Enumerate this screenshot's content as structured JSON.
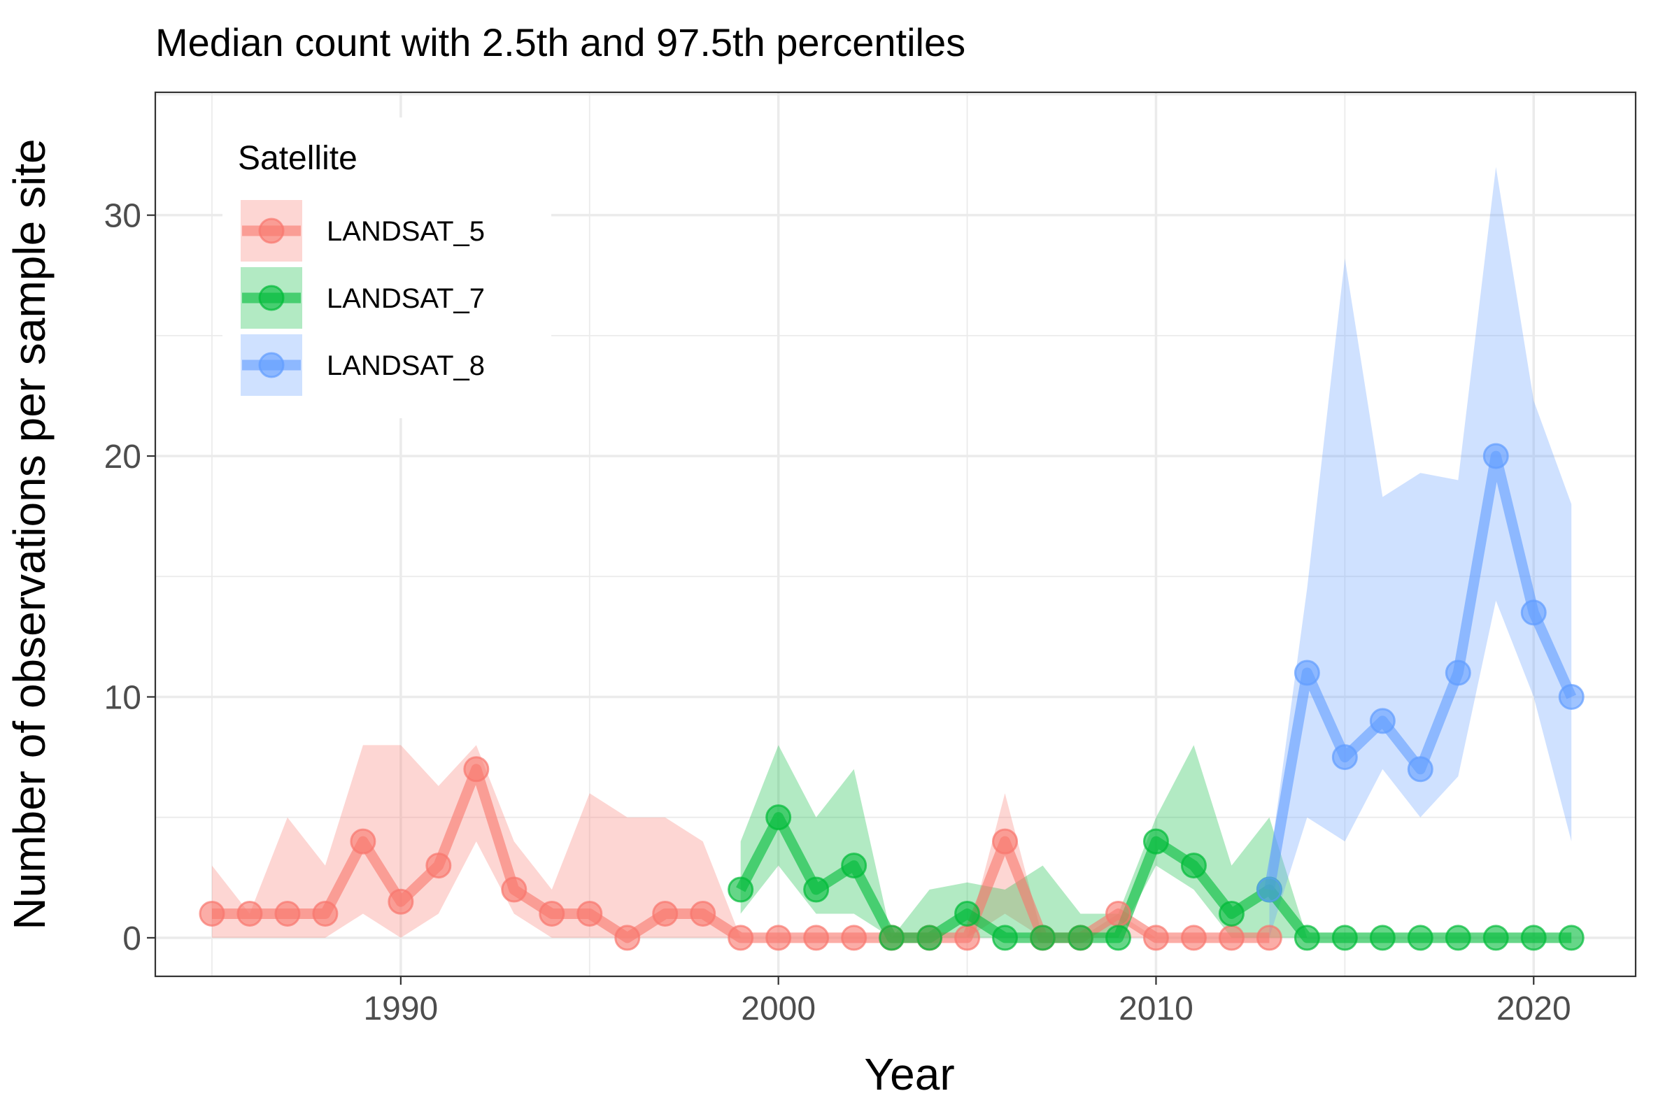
{
  "chart_data": {
    "type": "line",
    "title": "Median count with 2.5th and 97.5th percentiles",
    "xlabel": "Year",
    "ylabel": "Number of observations per sample site",
    "xlim": [
      1983.5,
      2022.7
    ],
    "ylim": [
      -1.6,
      35.1
    ],
    "x_ticks": [
      1990,
      2000,
      2010,
      2020
    ],
    "y_ticks": [
      0,
      10,
      20,
      30
    ],
    "x_minor": [
      1985,
      1995,
      2005,
      2015
    ],
    "y_minor": [
      5,
      15,
      25,
      35
    ],
    "grid": true,
    "legend": {
      "title": "Satellite",
      "position": "top-left"
    },
    "series": [
      {
        "name": "LANDSAT_5",
        "color": "#F8766D",
        "x": [
          1985,
          1986,
          1987,
          1988,
          1989,
          1990,
          1991,
          1992,
          1993,
          1994,
          1995,
          1996,
          1997,
          1998,
          1999,
          2000,
          2001,
          2002,
          2003,
          2004,
          2005,
          2006,
          2007,
          2008,
          2009,
          2010,
          2011,
          2012,
          2013
        ],
        "median": [
          1,
          1,
          1,
          1,
          4,
          1.5,
          3,
          7,
          2,
          1,
          1,
          0,
          1,
          1,
          0,
          0,
          0,
          0,
          0,
          0,
          0,
          4,
          0,
          0,
          1,
          0,
          0,
          0,
          0
        ],
        "lower": [
          0,
          0,
          0,
          0,
          1,
          0,
          1,
          4,
          1,
          0,
          0,
          0,
          0,
          0,
          0,
          0,
          0,
          0,
          0,
          0,
          0,
          1,
          0,
          0,
          0,
          0,
          0,
          0,
          0
        ],
        "upper": [
          3,
          1,
          5,
          3,
          8,
          8,
          6.3,
          8,
          4,
          2,
          6,
          5,
          5,
          4,
          0,
          0,
          0,
          0,
          0,
          0,
          0,
          6,
          0,
          0,
          1,
          0,
          0,
          0,
          0
        ]
      },
      {
        "name": "LANDSAT_7",
        "color": "#00BA38",
        "x": [
          1999,
          2000,
          2001,
          2002,
          2003,
          2004,
          2005,
          2006,
          2007,
          2008,
          2009,
          2010,
          2011,
          2012,
          2013,
          2014,
          2015,
          2016,
          2017,
          2018,
          2019,
          2020,
          2021
        ],
        "median": [
          2,
          5,
          2,
          3,
          0,
          0,
          1,
          0,
          0,
          0,
          0,
          4,
          3,
          1,
          2,
          0,
          0,
          0,
          0,
          0,
          0,
          0,
          0
        ],
        "lower": [
          1,
          3,
          1,
          1,
          0,
          0,
          0,
          0,
          0,
          0,
          0,
          3,
          2,
          0,
          0,
          0,
          0,
          0,
          0,
          0,
          0,
          0,
          0
        ],
        "upper": [
          4,
          8,
          5,
          7,
          0,
          2,
          2.3,
          2,
          3,
          1,
          1,
          5,
          8,
          3,
          5,
          0,
          0,
          0,
          0,
          0,
          0,
          0,
          0
        ]
      },
      {
        "name": "LANDSAT_8",
        "color": "#619CFF",
        "x": [
          2013,
          2014,
          2015,
          2016,
          2017,
          2018,
          2019,
          2020,
          2021
        ],
        "median": [
          2,
          11,
          7.5,
          9,
          7,
          11,
          20,
          13.5,
          10
        ],
        "lower": [
          0,
          5,
          4,
          7,
          5,
          6.7,
          14,
          10,
          4
        ],
        "upper": [
          3,
          14.5,
          28.2,
          18.3,
          19.3,
          19,
          32,
          22.3,
          18
        ]
      }
    ]
  }
}
